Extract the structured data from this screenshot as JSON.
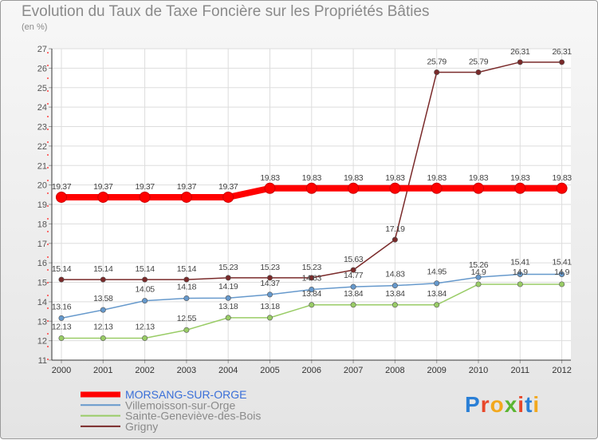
{
  "chart_data": {
    "type": "line",
    "title": "Evolution du Taux de Taxe Foncière sur les Propriétés Bâties",
    "ylabel": "(en %)",
    "xlabel": "",
    "ylim": [
      11,
      27
    ],
    "x": [
      "2000",
      "2001",
      "2002",
      "2003",
      "2004",
      "2005",
      "2006",
      "2007",
      "2008",
      "2009",
      "2010",
      "2011",
      "2012"
    ],
    "y_ticks": [
      "11",
      "12",
      "13",
      "14",
      "15",
      "16",
      "17",
      "18",
      "19",
      "20",
      "21",
      "22",
      "23",
      "24",
      "25",
      "26",
      "27"
    ],
    "series": [
      {
        "name": "MORSANG-SUR-ORGE",
        "color": "#ff0000",
        "values": [
          19.37,
          19.37,
          19.37,
          19.37,
          19.37,
          19.83,
          19.83,
          19.83,
          19.83,
          19.83,
          19.83,
          19.83,
          19.83
        ],
        "labels": [
          "19.37",
          "19.37",
          "19.37",
          "19.37",
          "19.37",
          "19.83",
          "19.83",
          "19.83",
          "19.83",
          "19.83",
          "19.83",
          "19.83",
          "19.83"
        ]
      },
      {
        "name": "Villemoisson-sur-Orge",
        "color": "#6699cc",
        "values": [
          13.16,
          13.58,
          14.05,
          14.18,
          14.19,
          14.37,
          14.63,
          14.77,
          14.83,
          14.95,
          15.26,
          15.41,
          15.41
        ],
        "labels": [
          "13.16",
          "13.58",
          "14.05",
          "14.18",
          "14.19",
          "14.37",
          "14.63",
          "14.77",
          "14.83",
          "14.95",
          "15.26",
          "15.41",
          "15.41"
        ]
      },
      {
        "name": "Sainte-Geneviève-des-Bois",
        "color": "#99cc66",
        "values": [
          12.13,
          12.13,
          12.13,
          12.55,
          13.18,
          13.18,
          13.84,
          13.84,
          13.84,
          13.84,
          14.9,
          14.9,
          14.9
        ],
        "labels": [
          "12.13",
          "12.13",
          "12.13",
          "12.55",
          "13.18",
          "13.18",
          "13.84",
          "13.84",
          "13.84",
          "13.84",
          "14.9",
          "14.9",
          "14.9"
        ]
      },
      {
        "name": "Grigny",
        "color": "#7a2a2a",
        "values": [
          15.14,
          15.14,
          15.14,
          15.14,
          15.23,
          15.23,
          15.23,
          15.63,
          17.19,
          25.79,
          25.79,
          26.31,
          26.31
        ],
        "labels": [
          "15.14",
          "15.14",
          "15.14",
          "15.14",
          "15.23",
          "15.23",
          "15.23",
          "15.63",
          "17.19",
          "25.79",
          "25.79",
          "26.31",
          "26.31"
        ]
      }
    ]
  },
  "branding": {
    "logo_text": "Proxiti",
    "letter_colors": [
      "#2a7fd6",
      "#e8472a",
      "#f2a81d",
      "#5bb531",
      "#e8472a",
      "#2a7fd6",
      "#f2a81d"
    ]
  }
}
